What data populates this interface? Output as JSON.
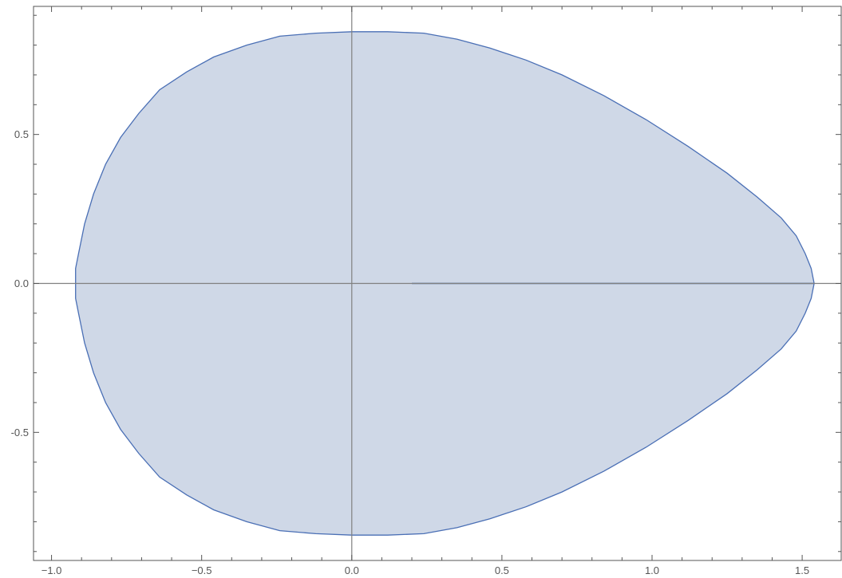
{
  "chart_data": {
    "type": "area",
    "title": "",
    "xlabel": "",
    "ylabel": "",
    "xlim": [
      -1.06,
      1.63
    ],
    "ylim": [
      -0.93,
      0.93
    ],
    "x_ticks": [
      {
        "value": -1.0,
        "label": "−1.0"
      },
      {
        "value": -0.5,
        "label": "−0.5"
      },
      {
        "value": 0.0,
        "label": "0.0"
      },
      {
        "value": 0.5,
        "label": "0.5"
      },
      {
        "value": 1.0,
        "label": "1.0"
      },
      {
        "value": 1.5,
        "label": "1.5"
      }
    ],
    "y_ticks": [
      {
        "value": -0.5,
        "label": "-0.5"
      },
      {
        "value": 0.0,
        "label": "0.0"
      },
      {
        "value": 0.5,
        "label": "0.5"
      }
    ],
    "grid": false,
    "legend": "none",
    "colors": {
      "fill": "#ccd6e6",
      "edge": "#4a6fb5",
      "axes": "#808080",
      "frame": "#555555"
    },
    "seam": {
      "x": [
        0.2,
        1.54
      ],
      "y": 0.0
    },
    "series": [
      {
        "x": [
          1.54,
          1.53,
          1.51,
          1.48,
          1.43,
          1.35,
          1.25,
          1.12,
          0.98,
          0.84,
          0.7,
          0.58,
          0.46,
          0.35,
          0.24,
          0.12,
          0.0,
          -0.12,
          -0.24,
          -0.35,
          -0.46,
          -0.55,
          -0.64,
          -0.71,
          -0.77,
          -0.82,
          -0.86,
          -0.89,
          -0.91,
          -0.92,
          -0.92,
          -0.92,
          -0.91,
          -0.89,
          -0.86,
          -0.82,
          -0.77,
          -0.71,
          -0.64,
          -0.55,
          -0.46,
          -0.35,
          -0.24,
          -0.12,
          0.0,
          0.12,
          0.24,
          0.35,
          0.46,
          0.58,
          0.7,
          0.84,
          0.98,
          1.12,
          1.25,
          1.35,
          1.43,
          1.48,
          1.51,
          1.53,
          1.54
        ],
        "y": [
          0.0,
          0.05,
          0.1,
          0.16,
          0.22,
          0.29,
          0.37,
          0.46,
          0.55,
          0.63,
          0.7,
          0.75,
          0.79,
          0.82,
          0.84,
          0.845,
          0.845,
          0.84,
          0.83,
          0.8,
          0.76,
          0.71,
          0.65,
          0.57,
          0.49,
          0.4,
          0.3,
          0.2,
          0.1,
          0.05,
          0.0,
          -0.05,
          -0.1,
          -0.2,
          -0.3,
          -0.4,
          -0.49,
          -0.57,
          -0.65,
          -0.71,
          -0.76,
          -0.8,
          -0.83,
          -0.84,
          -0.845,
          -0.845,
          -0.84,
          -0.82,
          -0.79,
          -0.75,
          -0.7,
          -0.63,
          -0.55,
          -0.46,
          -0.37,
          -0.29,
          -0.22,
          -0.16,
          -0.1,
          -0.05,
          0.0
        ]
      }
    ]
  }
}
